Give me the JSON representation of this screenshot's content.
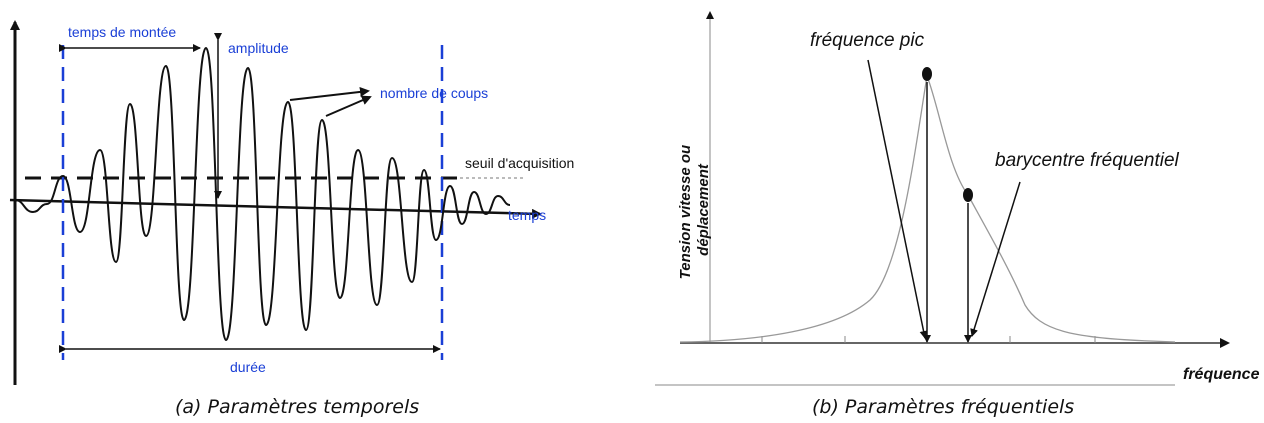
{
  "panel_a": {
    "labels": {
      "rise_time": "temps de montée",
      "amplitude": "amplitude",
      "counts": "nombre de coups",
      "threshold": "seuil d'acquisition",
      "time": "temps",
      "duration": "durée"
    },
    "caption": "(a) Paramètres temporels",
    "colors": {
      "markers": "#1a3fd6",
      "signal": "#111111"
    }
  },
  "panel_b": {
    "labels": {
      "peak_frequency": "fréquence pic",
      "centroid": "barycentre fréquentiel",
      "y_axis": "Tension vitesse ou déplacement",
      "x_axis": "fréquence"
    },
    "caption": "(b) Paramètres fréquentiels"
  }
}
